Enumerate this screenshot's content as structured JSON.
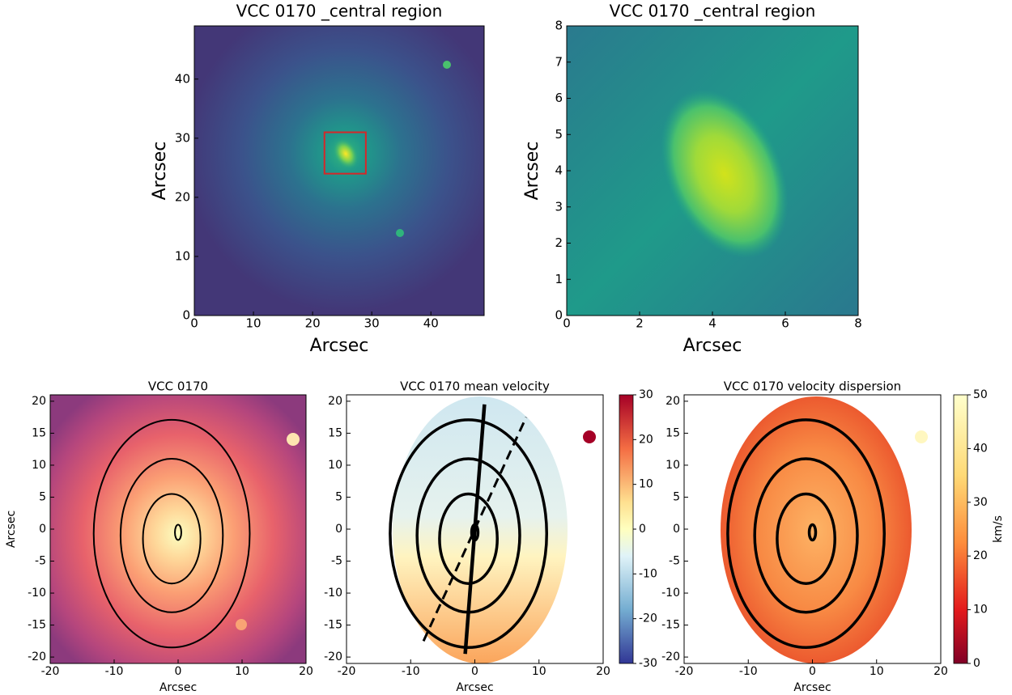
{
  "chart_data": [
    {
      "type": "image",
      "title": "VCC 0170 _central region",
      "xlabel": "Arcsec",
      "ylabel": "Arcsec",
      "xlim": [
        0,
        49
      ],
      "ylim": [
        0,
        49
      ],
      "xticks": [
        0,
        10,
        20,
        30,
        40
      ],
      "yticks": [
        0,
        10,
        20,
        30,
        40
      ],
      "highlight_box": {
        "x": [
          22,
          29
        ],
        "y": [
          24,
          31
        ],
        "color": "#d62728"
      }
    },
    {
      "type": "image",
      "title": "VCC 0170 _central region",
      "xlabel": "Arcsec",
      "ylabel": "Arcsec",
      "xlim": [
        0,
        8
      ],
      "ylim": [
        0,
        8
      ],
      "xticks": [
        0,
        2,
        4,
        6,
        8
      ],
      "yticks": [
        0,
        1,
        2,
        3,
        4,
        5,
        6,
        7,
        8
      ]
    },
    {
      "type": "image",
      "title": "VCC 0170",
      "xlabel": "Arcsec",
      "ylabel": "Arcsec",
      "xlim": [
        -20,
        20
      ],
      "ylim": [
        -21,
        21
      ],
      "xticks": [
        -20,
        -10,
        0,
        10,
        20
      ],
      "yticks": [
        -20,
        -15,
        -10,
        -5,
        0,
        5,
        10,
        15,
        20
      ],
      "ellipses": [
        {
          "cx": -1,
          "cy": -0.7,
          "rx": 12.2,
          "ry": 17.8
        },
        {
          "cx": -1,
          "cy": -1,
          "rx": 8,
          "ry": 12
        },
        {
          "cx": -1,
          "cy": -1.5,
          "rx": 4.5,
          "ry": 7
        },
        {
          "cx": 0,
          "cy": -0.5,
          "rx": 0.5,
          "ry": 1.2
        }
      ]
    },
    {
      "type": "image",
      "title": "VCC 0170 mean velocity",
      "xlabel": "Arcsec",
      "xlim": [
        -20,
        20
      ],
      "ylim": [
        -21,
        21
      ],
      "xticks": [
        -20,
        -10,
        0,
        10,
        20
      ],
      "yticks": [
        -20,
        -15,
        -10,
        -5,
        0,
        5,
        10,
        15,
        20
      ],
      "ellipses": [
        {
          "cx": -1,
          "cy": -0.7,
          "rx": 12.2,
          "ry": 17.8
        },
        {
          "cx": -1,
          "cy": -1,
          "rx": 8,
          "ry": 12
        },
        {
          "cx": -1,
          "cy": -1.5,
          "rx": 4.5,
          "ry": 7
        },
        {
          "cx": 0,
          "cy": -0.5,
          "rx": 0.5,
          "ry": 1.2
        }
      ],
      "lines": [
        {
          "x": [
            -1.5,
            1.5
          ],
          "y": [
            -19.5,
            19.5
          ],
          "style": "solid"
        },
        {
          "x": [
            -8,
            8
          ],
          "y": [
            -17.5,
            17.5
          ],
          "style": "dashed"
        }
      ],
      "colorbar": {
        "lim": [
          -30,
          30
        ],
        "ticks": [
          -30,
          -20,
          -10,
          0,
          10,
          20,
          30
        ]
      }
    },
    {
      "type": "image",
      "title": "VCC 0170 velocity dispersion",
      "xlabel": "Arcsec",
      "xlim": [
        -20,
        20
      ],
      "ylim": [
        -21,
        21
      ],
      "xticks": [
        -20,
        -10,
        0,
        10,
        20
      ],
      "yticks": [
        -20,
        -15,
        -10,
        -5,
        0,
        5,
        10,
        15,
        20
      ],
      "ellipses": [
        {
          "cx": -1,
          "cy": -0.7,
          "rx": 12.2,
          "ry": 17.8
        },
        {
          "cx": -1,
          "cy": -1,
          "rx": 8,
          "ry": 12
        },
        {
          "cx": -1,
          "cy": -1.5,
          "rx": 4.5,
          "ry": 7
        },
        {
          "cx": 0,
          "cy": -0.5,
          "rx": 0.5,
          "ry": 1.2
        }
      ],
      "colorbar": {
        "lim": [
          0,
          50
        ],
        "ticks": [
          0,
          10,
          20,
          30,
          40,
          50
        ],
        "label": "km/s"
      }
    }
  ]
}
